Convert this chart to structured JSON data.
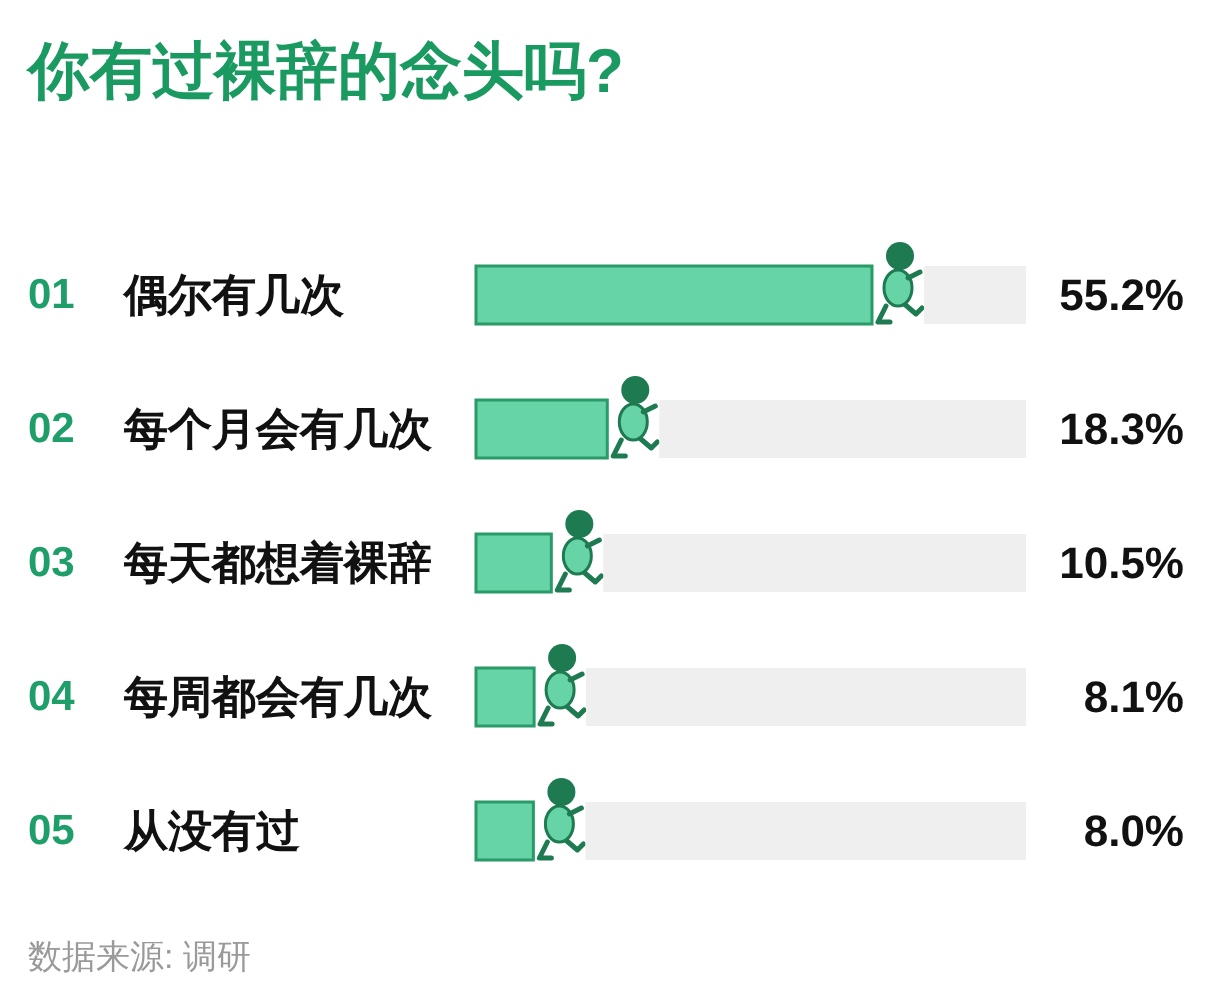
{
  "chart_data": {
    "type": "bar",
    "orientation": "horizontal",
    "title": "你有过裸辞的念头吗?",
    "categories": [
      "偶尔有几次",
      "每个月会有几次",
      "每天都想着裸辞",
      "每周都会有几次",
      "从没有过"
    ],
    "values": [
      55.2,
      18.3,
      10.5,
      8.1,
      8.0
    ],
    "color": "#67d4a8",
    "value_labels": [
      "55.2%",
      "18.3%",
      "10.5%",
      "8.1%",
      "8.0%"
    ],
    "annotations": [
      "01",
      "02",
      "03",
      "04",
      "05",
      "数据来源: 调研"
    ]
  }
}
